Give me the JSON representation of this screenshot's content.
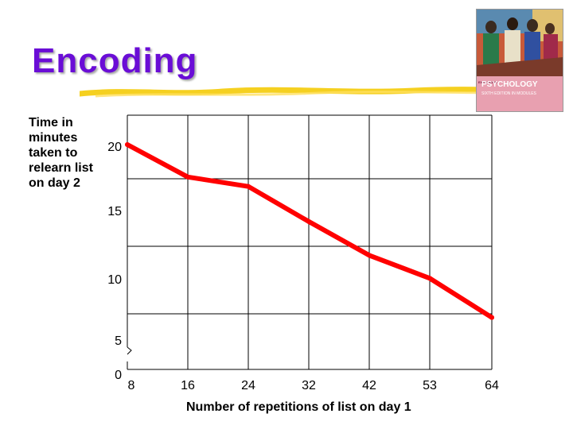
{
  "slide": {
    "title": "Encoding",
    "book": {
      "word": "PSYCHOLOGY",
      "small": "EXPLORING",
      "sub": "SIXTH EDITION IN MODULES"
    }
  },
  "chart_data": {
    "type": "line",
    "x": [
      8,
      16,
      24,
      32,
      42,
      53,
      64
    ],
    "series": [
      {
        "values": [
          20,
          17.6,
          16.9,
          14.3,
          11.8,
          10.1,
          7.2
        ],
        "color": "#ff0000"
      }
    ],
    "xlabel": "Number of repetitions of list on day 1",
    "ylabel": "Time in minutes taken to relearn list on day 2",
    "x_tick_labels": [
      "8",
      "16",
      "24",
      "32",
      "42",
      "53",
      "64"
    ],
    "y_ticks": [
      0,
      5,
      10,
      15,
      20
    ],
    "ylim": [
      5,
      22
    ],
    "grid": true,
    "axis_break": true
  }
}
